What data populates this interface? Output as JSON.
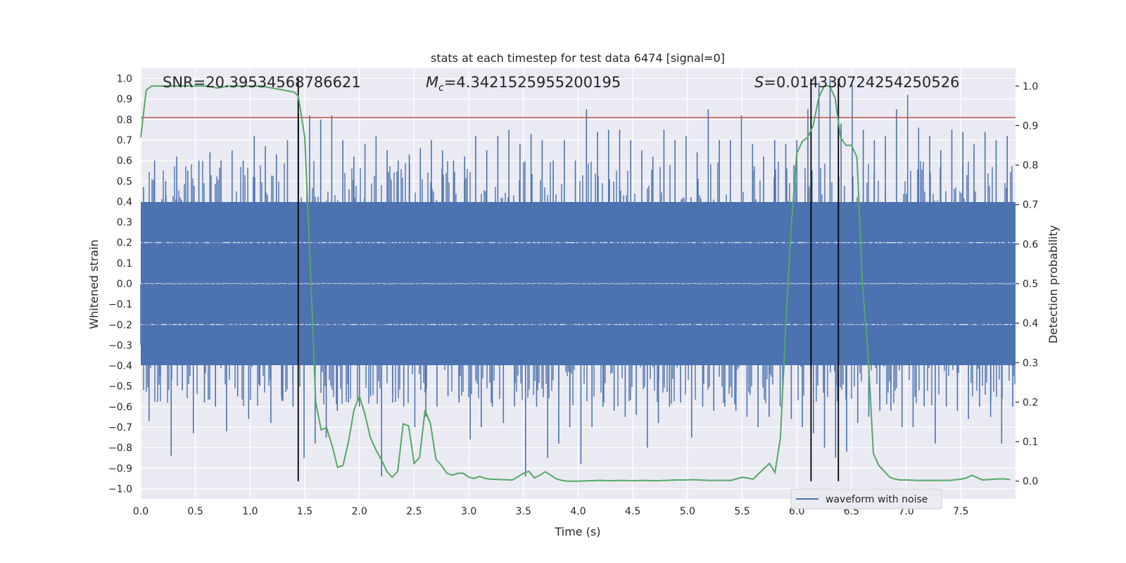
{
  "chart_data": {
    "type": "line",
    "title": "stats at each timestep for test data 6474 [signal=0]",
    "xlabel": "Time (s)",
    "ylabel": "Whitened strain",
    "y2label": "Detection probability",
    "xlim": [
      0.0,
      8.0
    ],
    "ylim": [
      -1.05,
      1.05
    ],
    "y2lim": [
      -0.045,
      1.045
    ],
    "xticks": [
      "0.0",
      "0.5",
      "1.0",
      "1.5",
      "2.0",
      "2.5",
      "3.0",
      "3.5",
      "4.0",
      "4.5",
      "5.0",
      "5.5",
      "6.0",
      "6.5",
      "7.0",
      "7.5"
    ],
    "yticks": [
      "1.0",
      "0.9",
      "0.8",
      "0.7",
      "0.6",
      "0.5",
      "0.4",
      "0.3",
      "0.2",
      "0.1",
      "0.0",
      "−0.1",
      "−0.2",
      "−0.3",
      "−0.4",
      "−0.5",
      "−0.6",
      "−0.7",
      "−0.8",
      "−0.9",
      "−1.0"
    ],
    "y2ticks": [
      "1.0",
      "0.9",
      "0.8",
      "0.7",
      "0.6",
      "0.5",
      "0.4",
      "0.3",
      "0.2",
      "0.1",
      "0.0"
    ],
    "grid": true,
    "legend_position": "lower-right",
    "annotations": {
      "snr": "SNR=20.39534568786621",
      "mc": "=4.3421525955200195",
      "mc_symbol": "M",
      "mc_sub": "c",
      "s": "=0.014330724254250526",
      "s_symbol": "S"
    },
    "threshold": {
      "value": 0.81,
      "color": "#c44e52"
    },
    "vertical_lines": [
      1.44,
      6.13,
      6.38
    ],
    "series": [
      {
        "name": "waveform with noise",
        "axis": "left",
        "color": "#4c72b0",
        "style": "dense noise waveform, envelope roughly ±0.4 with spikes up to ±0.95",
        "values": [
          0.47,
          -0.67,
          0.6,
          -0.45,
          0.5,
          -0.84,
          0.62,
          -0.52,
          0.55,
          -0.73,
          0.6,
          -0.58,
          0.64,
          -0.6,
          0.6,
          -0.72,
          0.65,
          -0.55,
          0.6,
          -0.66,
          0.72,
          -0.5,
          0.67,
          -0.68,
          0.63,
          -0.57,
          0.7,
          -0.6,
          0.83,
          -0.85,
          0.82,
          -0.78,
          0.8,
          -0.75,
          0.82,
          -0.62,
          0.7,
          -0.58,
          0.62,
          -0.6,
          0.68,
          -0.55,
          0.72,
          -0.94,
          0.65,
          -0.58,
          0.6,
          -0.6,
          0.63,
          -0.7,
          0.66,
          -0.65,
          0.7,
          -0.6,
          0.65,
          -0.55,
          0.6,
          -0.58,
          0.62,
          -0.76,
          0.72,
          -0.7,
          0.65,
          -0.6,
          0.72,
          -0.68,
          0.75,
          -0.6,
          0.68,
          -0.94,
          0.73,
          -0.6,
          0.7,
          -0.85,
          0.6,
          -0.78,
          0.7,
          -0.7,
          0.6,
          -0.88,
          0.85,
          -0.7,
          0.74,
          -0.6,
          0.75,
          -0.62,
          0.75,
          -0.65,
          0.7,
          -0.64,
          0.65,
          -0.8,
          0.62,
          -0.68,
          0.75,
          -0.6,
          0.7,
          -0.58,
          0.72,
          -0.75,
          0.64,
          -0.6,
          0.85,
          -0.62,
          0.7,
          -0.6,
          0.7,
          -0.62,
          0.82,
          -0.65,
          0.68,
          -0.7,
          0.62,
          -0.65,
          0.7,
          -0.6,
          0.68,
          -0.66,
          0.7,
          -0.7,
          0.85,
          -0.73,
          0.98,
          -0.8,
          1.0,
          -0.85,
          0.78,
          -0.82,
          0.97,
          -0.68,
          0.75,
          -0.65,
          0.7,
          -0.62,
          0.72,
          -0.62,
          0.85,
          -0.7,
          0.92,
          -0.7,
          0.76,
          -0.6,
          0.72,
          -0.78,
          0.65,
          -0.6,
          0.75,
          -0.62,
          0.74,
          -0.66,
          0.68,
          -0.6,
          0.74,
          -0.65,
          0.7,
          -0.78,
          0.72,
          -0.6
        ]
      },
      {
        "name": "detection probability",
        "axis": "right",
        "color": "#55a868",
        "x": [
          0.0,
          0.05,
          0.1,
          0.15,
          0.2,
          0.3,
          0.4,
          0.5,
          0.6,
          0.7,
          0.8,
          0.9,
          1.0,
          1.1,
          1.2,
          1.3,
          1.4,
          1.44,
          1.5,
          1.55,
          1.6,
          1.65,
          1.7,
          1.75,
          1.8,
          1.85,
          1.9,
          1.95,
          2.0,
          2.05,
          2.1,
          2.15,
          2.2,
          2.25,
          2.3,
          2.35,
          2.4,
          2.45,
          2.5,
          2.55,
          2.6,
          2.65,
          2.7,
          2.75,
          2.8,
          2.85,
          2.9,
          2.95,
          3.0,
          3.05,
          3.1,
          3.15,
          3.2,
          3.3,
          3.4,
          3.5,
          3.55,
          3.6,
          3.65,
          3.7,
          3.8,
          3.85,
          3.9,
          4.0,
          4.2,
          4.3,
          4.4,
          4.5,
          4.6,
          4.7,
          4.8,
          4.9,
          5.0,
          5.05,
          5.1,
          5.2,
          5.3,
          5.4,
          5.5,
          5.55,
          5.6,
          5.7,
          5.75,
          5.8,
          5.85,
          5.9,
          5.95,
          6.0,
          6.05,
          6.1,
          6.15,
          6.2,
          6.25,
          6.3,
          6.35,
          6.4,
          6.45,
          6.5,
          6.55,
          6.6,
          6.65,
          6.7,
          6.75,
          6.8,
          6.85,
          6.9,
          6.95,
          7.0,
          7.1,
          7.2,
          7.3,
          7.4,
          7.5,
          7.55,
          7.6,
          7.7,
          7.8,
          7.9,
          7.95
        ],
        "values": [
          0.87,
          0.99,
          1.0,
          1.0,
          1.0,
          1.0,
          1.0,
          1.0,
          1.0,
          0.995,
          1.0,
          1.0,
          1.0,
          1.0,
          0.995,
          0.99,
          0.985,
          0.975,
          0.87,
          0.55,
          0.2,
          0.13,
          0.135,
          0.09,
          0.035,
          0.04,
          0.1,
          0.18,
          0.215,
          0.17,
          0.11,
          0.08,
          0.055,
          0.025,
          0.01,
          0.025,
          0.145,
          0.14,
          0.045,
          0.06,
          0.18,
          0.145,
          0.055,
          0.04,
          0.02,
          0.015,
          0.02,
          0.02,
          0.01,
          0.007,
          0.012,
          0.007,
          0.005,
          0.004,
          0.003,
          0.02,
          0.025,
          0.008,
          0.015,
          0.024,
          0.006,
          0.002,
          0.0,
          0.0,
          0.002,
          0.001,
          0.002,
          0.001,
          0.002,
          0.001,
          0.002,
          0.003,
          0.003,
          0.004,
          0.003,
          0.002,
          0.002,
          0.002,
          0.01,
          0.008,
          0.005,
          0.032,
          0.045,
          0.022,
          0.11,
          0.4,
          0.65,
          0.83,
          0.86,
          0.87,
          0.9,
          0.97,
          1.0,
          1.0,
          0.97,
          0.87,
          0.85,
          0.85,
          0.82,
          0.5,
          0.33,
          0.07,
          0.04,
          0.025,
          0.01,
          0.005,
          0.003,
          0.003,
          0.002,
          0.002,
          0.002,
          0.002,
          0.005,
          0.008,
          0.015,
          0.003,
          0.005,
          0.006,
          0.004
        ]
      }
    ]
  }
}
